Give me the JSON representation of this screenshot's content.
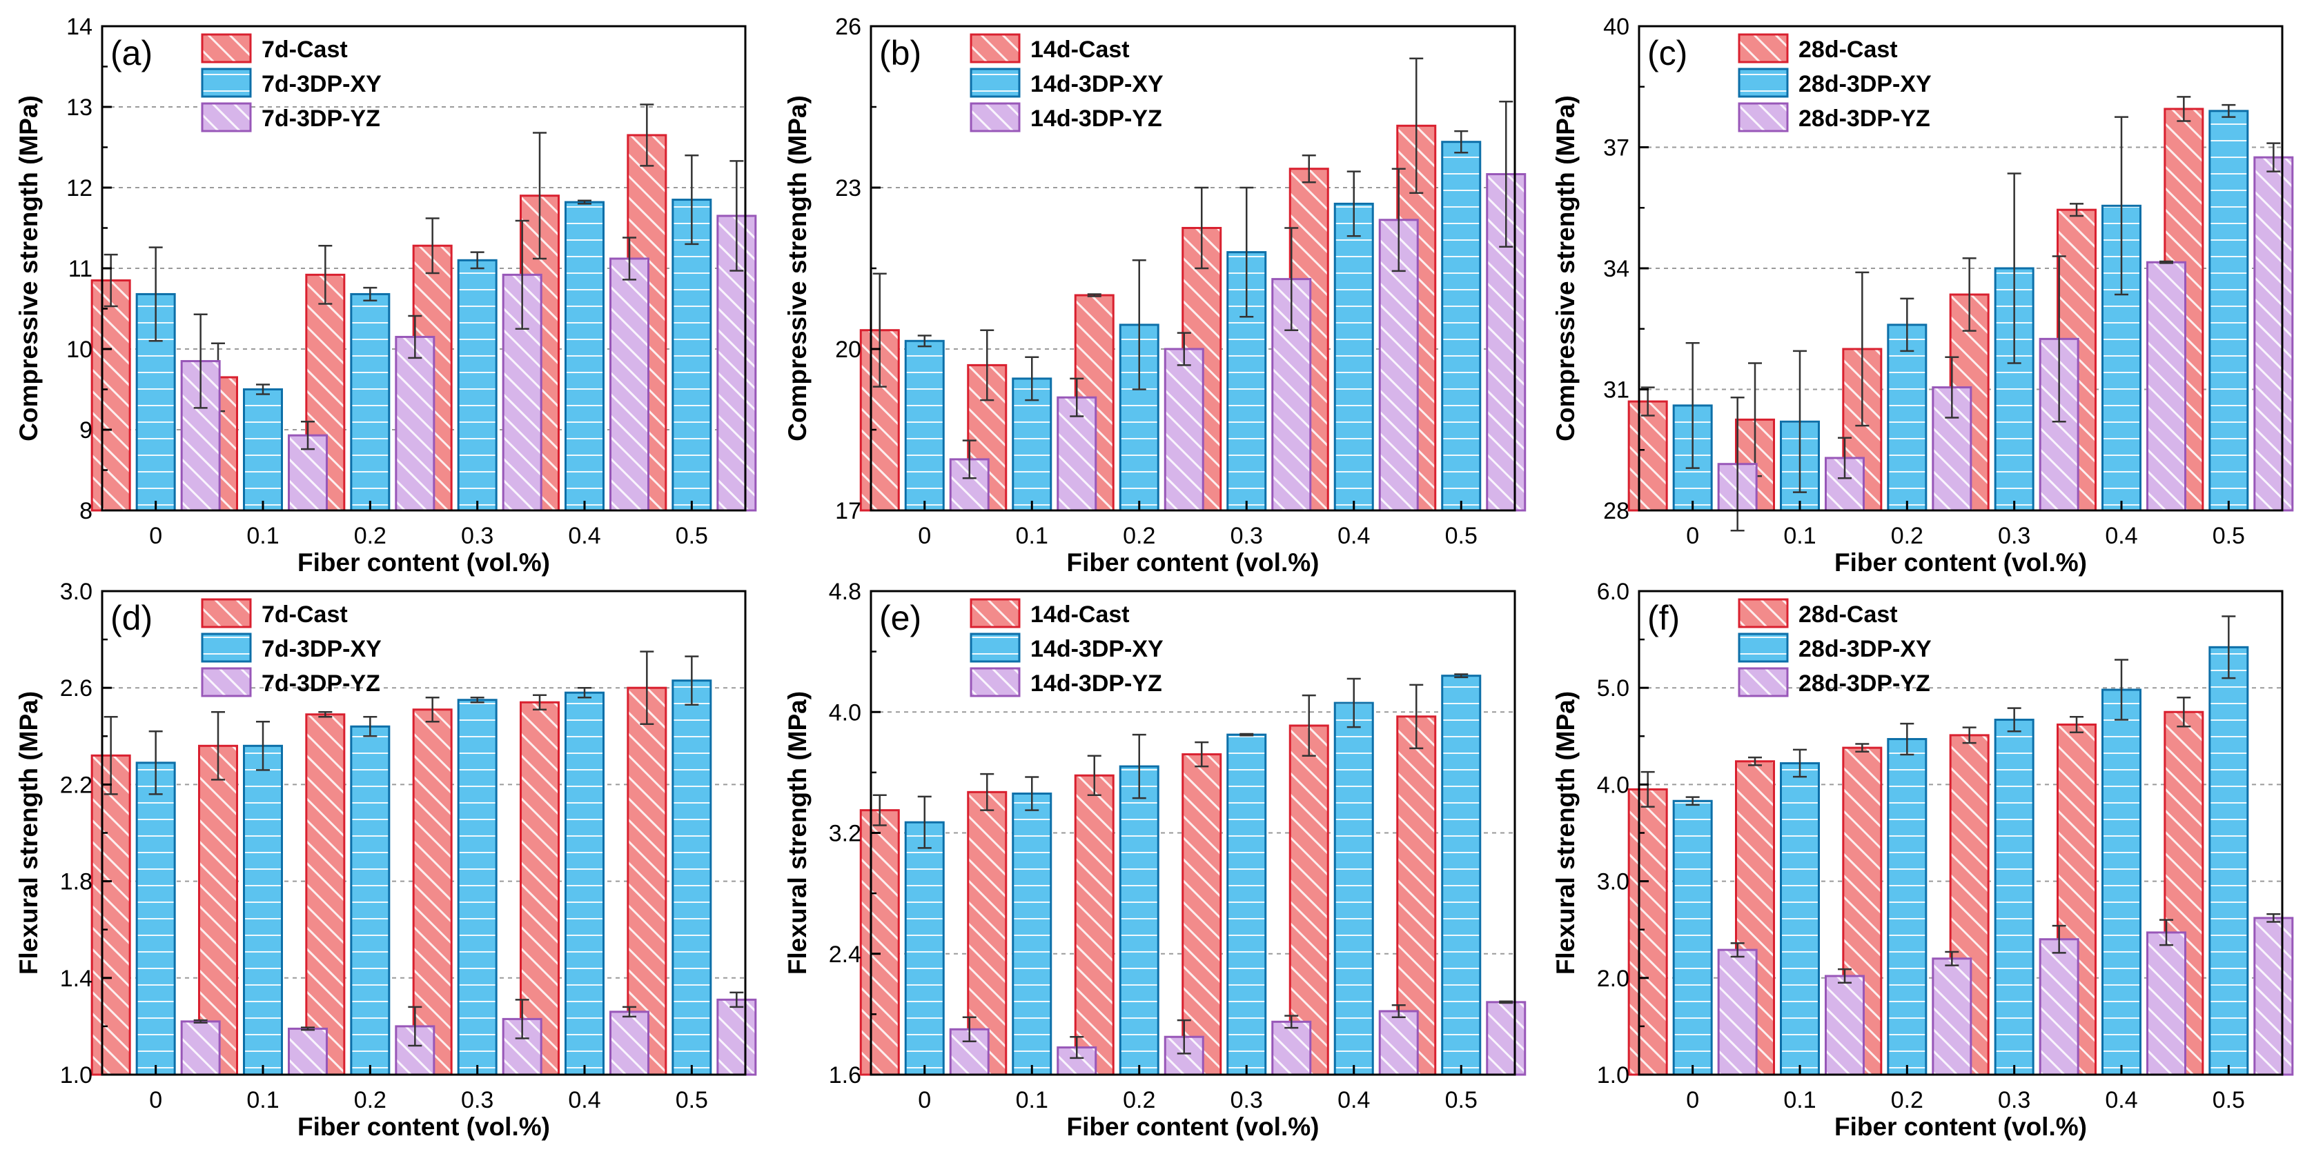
{
  "colors": {
    "cast_fill": "#f28b8b",
    "cast_stroke": "#d9202f",
    "xy_fill": "#5cc3ef",
    "xy_stroke": "#0d6fa8",
    "yz_fill": "#d7b5ea",
    "yz_stroke": "#9857b8"
  },
  "chart_data": [
    {
      "id": "a",
      "panel_label": "(a)",
      "type": "bar",
      "categories": [
        "0",
        "0.1",
        "0.2",
        "0.3",
        "0.4",
        "0.5"
      ],
      "xlabel": "Fiber content (vol.%)",
      "ylabel": "Compressive strength (MPa)",
      "ylim": [
        8,
        14
      ],
      "yticks": [
        8,
        9,
        10,
        11,
        12,
        13,
        14
      ],
      "yticklabels": [
        "8",
        "9",
        "10",
        "11",
        "12",
        "13",
        "14"
      ],
      "series": [
        {
          "name": "7d-Cast",
          "values": [
            10.85,
            9.65,
            10.92,
            11.28,
            11.9,
            12.65
          ],
          "errors": [
            0.32,
            0.42,
            0.36,
            0.34,
            0.78,
            0.38
          ]
        },
        {
          "name": "7d-3DP-XY",
          "values": [
            10.68,
            9.5,
            10.68,
            11.1,
            11.82,
            11.85
          ],
          "errors": [
            0.58,
            0.06,
            0.08,
            0.1,
            0.02,
            0.55
          ]
        },
        {
          "name": "7d-3DP-YZ",
          "values": [
            9.85,
            8.93,
            10.15,
            10.92,
            11.12,
            11.65
          ],
          "errors": [
            0.58,
            0.17,
            0.26,
            0.67,
            0.26,
            0.68
          ]
        }
      ]
    },
    {
      "id": "b",
      "panel_label": "(b)",
      "type": "bar",
      "categories": [
        "0",
        "0.1",
        "0.2",
        "0.3",
        "0.4",
        "0.5"
      ],
      "xlabel": "Fiber content (vol.%)",
      "ylabel": "Compressive strength (MPa)",
      "ylim": [
        17,
        26
      ],
      "yticks": [
        17,
        20,
        23,
        26
      ],
      "yticklabels": [
        "17",
        "20",
        "23",
        "26"
      ],
      "series": [
        {
          "name": "14d-Cast",
          "values": [
            20.35,
            19.7,
            21.0,
            22.25,
            23.35,
            24.15
          ],
          "errors": [
            1.05,
            0.65,
            0.02,
            0.75,
            0.25,
            1.25
          ]
        },
        {
          "name": "14d-3DP-XY",
          "values": [
            20.15,
            19.45,
            20.45,
            21.8,
            22.7,
            23.85
          ],
          "errors": [
            0.1,
            0.4,
            1.2,
            1.2,
            0.6,
            0.2
          ]
        },
        {
          "name": "14d-3DP-YZ",
          "values": [
            17.95,
            19.1,
            20.0,
            21.3,
            22.4,
            23.25
          ],
          "errors": [
            0.35,
            0.35,
            0.3,
            0.95,
            0.95,
            1.35
          ]
        }
      ]
    },
    {
      "id": "c",
      "panel_label": "(c)",
      "type": "bar",
      "categories": [
        "0",
        "0.1",
        "0.2",
        "0.3",
        "0.4",
        "0.5"
      ],
      "xlabel": "Fiber content (vol.%)",
      "ylabel": "Compressive strength (MPa)",
      "ylim": [
        28,
        40
      ],
      "yticks": [
        28,
        31,
        34,
        37,
        40
      ],
      "yticklabels": [
        "28",
        "31",
        "34",
        "37",
        "40"
      ],
      "series": [
        {
          "name": "28d-Cast",
          "values": [
            30.7,
            30.25,
            32.0,
            33.35,
            35.45,
            37.95
          ],
          "errors": [
            0.35,
            1.4,
            1.9,
            0.9,
            0.15,
            0.3
          ]
        },
        {
          "name": "28d-3DP-XY",
          "values": [
            30.6,
            30.2,
            32.6,
            34.0,
            35.55,
            37.9
          ],
          "errors": [
            1.55,
            1.75,
            0.65,
            2.35,
            2.2,
            0.15
          ]
        },
        {
          "name": "28d-3DP-YZ",
          "values": [
            29.15,
            29.3,
            31.05,
            32.25,
            34.15,
            36.75
          ],
          "errors": [
            1.65,
            0.5,
            0.75,
            2.05,
            0.02,
            0.35
          ]
        }
      ]
    },
    {
      "id": "d",
      "panel_label": "(d)",
      "type": "bar",
      "categories": [
        "0",
        "0.1",
        "0.2",
        "0.3",
        "0.4",
        "0.5"
      ],
      "xlabel": "Fiber content (vol.%)",
      "ylabel": "Flexural strength (MPa)",
      "ylim": [
        1.0,
        3.0
      ],
      "yticks": [
        1.0,
        1.4,
        1.8,
        2.2,
        2.6,
        3.0
      ],
      "yticklabels": [
        "1.0",
        "1.4",
        "1.8",
        "2.2",
        "2.6",
        "3.0"
      ],
      "series": [
        {
          "name": "7d-Cast",
          "values": [
            2.32,
            2.36,
            2.49,
            2.51,
            2.54,
            2.6
          ],
          "errors": [
            0.16,
            0.14,
            0.01,
            0.05,
            0.03,
            0.15
          ]
        },
        {
          "name": "7d-3DP-XY",
          "values": [
            2.29,
            2.36,
            2.44,
            2.55,
            2.58,
            2.63
          ],
          "errors": [
            0.13,
            0.1,
            0.04,
            0.01,
            0.02,
            0.1
          ]
        },
        {
          "name": "7d-3DP-YZ",
          "values": [
            1.22,
            1.19,
            1.2,
            1.23,
            1.26,
            1.31
          ],
          "errors": [
            0.005,
            0.005,
            0.08,
            0.08,
            0.02,
            0.03
          ]
        }
      ]
    },
    {
      "id": "e",
      "panel_label": "(e)",
      "type": "bar",
      "categories": [
        "0",
        "0.1",
        "0.2",
        "0.3",
        "0.4",
        "0.5"
      ],
      "xlabel": "Fiber content (vol.%)",
      "ylabel": "Flexural strength (MPa)",
      "ylim": [
        1.6,
        4.8
      ],
      "yticks": [
        1.6,
        2.4,
        3.2,
        4.0,
        4.8
      ],
      "yticklabels": [
        "1.6",
        "2.4",
        "3.2",
        "4.0",
        "4.8"
      ],
      "series": [
        {
          "name": "14d-Cast",
          "values": [
            3.35,
            3.47,
            3.58,
            3.72,
            3.91,
            3.97
          ],
          "errors": [
            0.1,
            0.12,
            0.13,
            0.08,
            0.2,
            0.21
          ]
        },
        {
          "name": "14d-3DP-XY",
          "values": [
            3.27,
            3.46,
            3.64,
            3.85,
            4.06,
            4.24
          ],
          "errors": [
            0.17,
            0.11,
            0.21,
            0.005,
            0.16,
            0.01
          ]
        },
        {
          "name": "14d-3DP-YZ",
          "values": [
            1.9,
            1.78,
            1.85,
            1.95,
            2.02,
            2.08
          ],
          "errors": [
            0.08,
            0.07,
            0.11,
            0.04,
            0.04,
            0.005
          ]
        }
      ]
    },
    {
      "id": "f",
      "panel_label": "(f)",
      "type": "bar",
      "categories": [
        "0",
        "0.1",
        "0.2",
        "0.3",
        "0.4",
        "0.5"
      ],
      "xlabel": "Fiber content (vol.%)",
      "ylabel": "Flexural strength (MPa)",
      "ylim": [
        1.0,
        6.0
      ],
      "yticks": [
        1,
        2,
        3,
        4,
        5,
        6
      ],
      "yticklabels": [
        "1.0",
        "2.0",
        "3.0",
        "4.0",
        "5.0",
        "6.0"
      ],
      "series": [
        {
          "name": "28d-Cast",
          "values": [
            3.95,
            4.24,
            4.38,
            4.51,
            4.62,
            4.75
          ],
          "errors": [
            0.18,
            0.04,
            0.04,
            0.08,
            0.08,
            0.15
          ]
        },
        {
          "name": "28d-3DP-XY",
          "values": [
            3.83,
            4.22,
            4.47,
            4.67,
            4.98,
            5.42
          ],
          "errors": [
            0.04,
            0.14,
            0.16,
            0.12,
            0.31,
            0.32
          ]
        },
        {
          "name": "28d-3DP-YZ",
          "values": [
            2.29,
            2.02,
            2.2,
            2.4,
            2.47,
            2.62
          ],
          "errors": [
            0.07,
            0.07,
            0.07,
            0.14,
            0.13,
            0.04
          ]
        }
      ]
    }
  ]
}
